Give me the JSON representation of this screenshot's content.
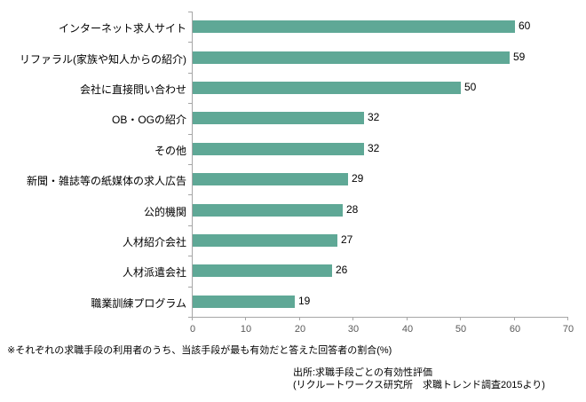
{
  "chart_data": {
    "type": "bar",
    "orientation": "horizontal",
    "title": "",
    "categories": [
      "インターネット求人サイト",
      "リファラル(家族や知人からの紹介)",
      "会社に直接問い合わせ",
      "OB・OGの紹介",
      "その他",
      "新聞・雑誌等の紙媒体の求人広告",
      "公的機関",
      "人材紹介会社",
      "人材派遣会社",
      "職業訓練プログラム"
    ],
    "values": [
      60,
      59,
      50,
      32,
      32,
      29,
      28,
      27,
      26,
      19
    ],
    "xlabel": "",
    "ylabel": "",
    "xlim": [
      0,
      70
    ],
    "x_ticks": [
      0,
      10,
      20,
      30,
      40,
      50,
      60,
      70
    ],
    "grid": false,
    "legend_position": "none",
    "bar_color": "#5fa896",
    "axis_color": "#a6a6a6",
    "tick_label_color": "#595959",
    "value_label_color": "#000000"
  },
  "footnote": "※それぞれの求職手段の利用者のうち、当該手段が最も有効だと答えた回答者の割合(%)",
  "source": {
    "line1": "出所:求職手段ごとの有効性評価",
    "line2": "(リクルートワークス研究所　求職トレンド調査2015より)"
  }
}
